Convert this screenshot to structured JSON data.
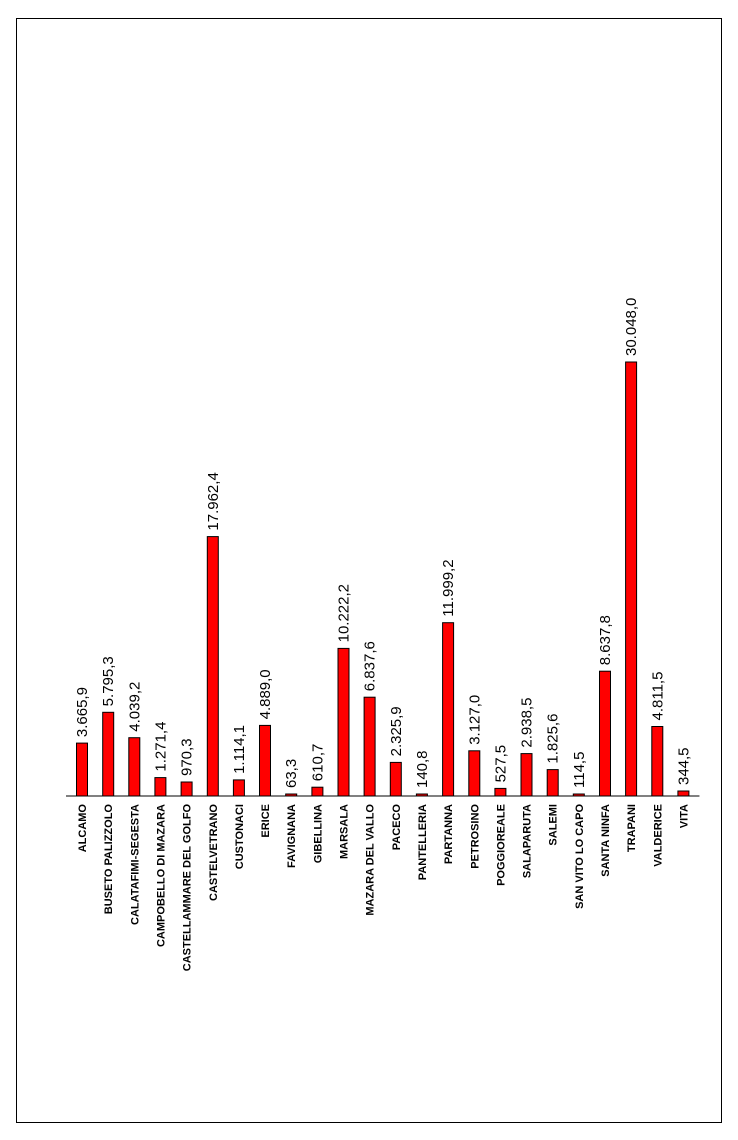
{
  "chart_data": {
    "type": "bar",
    "orientation": "rotated-vertical",
    "categories": [
      "ALCAMO",
      "BUSETO PALIZZOLO",
      "CALATAFIMI-SEGESTA",
      "CAMPOBELLO DI MAZARA",
      "CASTELLAMMARE DEL GOLFO",
      "CASTELVETRANO",
      "CUSTONACI",
      "ERICE",
      "FAVIGNANA",
      "GIBELLINA",
      "MARSALA",
      "MAZARA DEL VALLO",
      "PACECO",
      "PANTELLERIA",
      "PARTANNA",
      "PETROSINO",
      "POGGIOREALE",
      "SALAPARUTA",
      "SALEMI",
      "SAN VITO LO CAPO",
      "SANTA NINFA",
      "TRAPANI",
      "VALDERICE",
      "VITA"
    ],
    "values": [
      3665.9,
      5795.3,
      4039.2,
      1271.4,
      970.3,
      17962.4,
      1114.1,
      4889.0,
      63.3,
      610.7,
      10222.2,
      6837.6,
      2325.9,
      140.8,
      11999.2,
      3127.0,
      527.5,
      2938.5,
      1825.6,
      114.5,
      8637.8,
      30048.0,
      4811.5,
      344.5
    ],
    "value_labels": [
      "3.665,9",
      "5.795,3",
      "4.039,2",
      "1.271,4",
      "970,3",
      "17.962,4",
      "1.114,1",
      "4.889,0",
      "63,3",
      "610,7",
      "10.222,2",
      "6.837,6",
      "2.325,9",
      "140,8",
      "11.999,2",
      "3.127,0",
      "527,5",
      "2.938,5",
      "1.825,6",
      "114,5",
      "8.637,8",
      "30.048,0",
      "4.811,5",
      "344,5"
    ],
    "title": "",
    "xlabel": "",
    "ylabel": "",
    "ylim": [
      0,
      30048.0
    ],
    "grid": false,
    "legend": "none",
    "colors": {
      "bar_fill": "#ff0000",
      "bar_stroke": "#000000",
      "axis": "#000000",
      "background": "#ffffff",
      "frame": "#000000"
    }
  }
}
